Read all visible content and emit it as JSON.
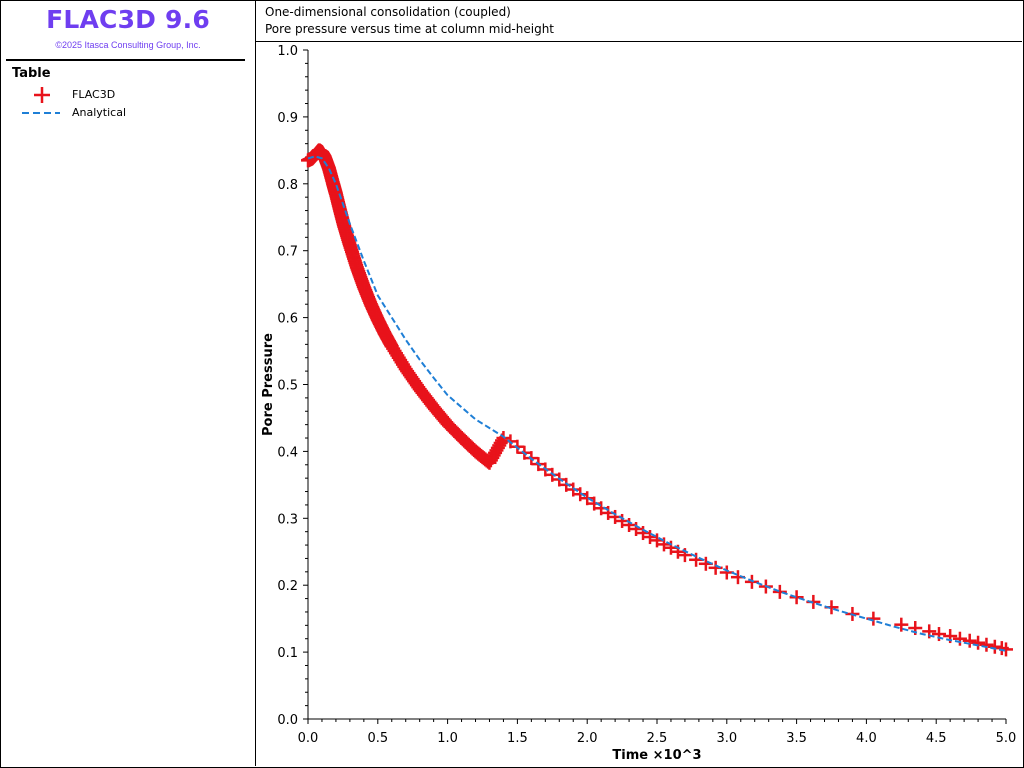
{
  "app": {
    "title": "FLAC3D 9.6",
    "copyright": "©2025 Itasca Consulting Group, Inc."
  },
  "legend": {
    "title": "Table",
    "items": [
      {
        "label": "FLAC3D",
        "marker": "cross-icon",
        "color": "#e8131b"
      },
      {
        "label": "Analytical",
        "marker": "dashed-line-icon",
        "color": "#1f7fd6"
      }
    ]
  },
  "header": {
    "line1": "One-dimensional consolidation (coupled)",
    "line2": "Pore pressure versus time at column mid-height"
  },
  "colors": {
    "flac3d": "#e8131b",
    "analytical": "#1f7fd6",
    "brand": "#6f3ef0"
  },
  "chart_data": {
    "type": "scatter",
    "title": "",
    "xlabel": "Time ×10^3",
    "ylabel": "Pore Pressure",
    "xlim": [
      0.0,
      5.0
    ],
    "ylim": [
      0.0,
      1.0
    ],
    "xticks": [
      "0.0",
      "0.5",
      "1.0",
      "1.5",
      "2.0",
      "2.5",
      "3.0",
      "3.5",
      "4.0",
      "4.5",
      "5.0"
    ],
    "yticks": [
      "0.0",
      "0.1",
      "0.2",
      "0.3",
      "0.4",
      "0.5",
      "0.6",
      "0.7",
      "0.8",
      "0.9",
      "1.0"
    ],
    "grid": false,
    "series": [
      {
        "name": "FLAC3D",
        "style": "markers",
        "x": [
          0.0,
          0.03,
          0.06,
          0.08,
          0.1,
          0.12,
          0.15,
          0.18,
          0.2,
          0.23,
          0.26,
          0.3,
          0.35,
          0.4,
          0.45,
          0.5,
          0.55,
          0.6,
          0.7,
          0.8,
          0.9,
          1.0,
          1.1,
          1.2,
          1.3,
          1.4,
          1.45,
          1.5,
          1.55,
          1.6,
          1.65,
          1.7,
          1.75,
          1.8,
          1.85,
          1.9,
          1.95,
          2.0,
          2.05,
          2.1,
          2.15,
          2.2,
          2.25,
          2.3,
          2.35,
          2.4,
          2.45,
          2.5,
          2.55,
          2.6,
          2.65,
          2.7,
          2.78,
          2.85,
          2.92,
          3.0,
          3.08,
          3.18,
          3.28,
          3.38,
          3.5,
          3.62,
          3.75,
          3.9,
          4.05,
          4.25,
          4.35,
          4.45,
          4.52,
          4.6,
          4.67,
          4.74,
          4.8,
          4.86,
          4.92,
          4.97,
          5.0
        ],
        "y": [
          0.835,
          0.838,
          0.845,
          0.85,
          0.847,
          0.84,
          0.823,
          0.8,
          0.785,
          0.76,
          0.736,
          0.708,
          0.675,
          0.646,
          0.62,
          0.597,
          0.576,
          0.557,
          0.523,
          0.493,
          0.466,
          0.441,
          0.42,
          0.4,
          0.383,
          0.42,
          0.415,
          0.407,
          0.398,
          0.39,
          0.381,
          0.373,
          0.365,
          0.358,
          0.35,
          0.343,
          0.336,
          0.33,
          0.322,
          0.315,
          0.308,
          0.302,
          0.296,
          0.29,
          0.284,
          0.278,
          0.272,
          0.267,
          0.261,
          0.256,
          0.25,
          0.245,
          0.238,
          0.232,
          0.226,
          0.219,
          0.212,
          0.205,
          0.198,
          0.19,
          0.182,
          0.175,
          0.167,
          0.157,
          0.15,
          0.141,
          0.136,
          0.131,
          0.127,
          0.124,
          0.12,
          0.117,
          0.114,
          0.111,
          0.108,
          0.106,
          0.104
        ]
      },
      {
        "name": "Analytical",
        "style": "dashed-line",
        "x": [
          0.0,
          0.05,
          0.1,
          0.15,
          0.2,
          0.25,
          0.3,
          0.4,
          0.5,
          0.6,
          0.7,
          0.8,
          0.9,
          1.0,
          1.2,
          1.4,
          1.6,
          1.8,
          2.0,
          2.2,
          2.4,
          2.6,
          2.8,
          3.0,
          3.2,
          3.4,
          3.6,
          3.8,
          4.0,
          4.2,
          4.4,
          4.6,
          4.8,
          5.0
        ],
        "y": [
          0.838,
          0.841,
          0.838,
          0.823,
          0.8,
          0.77,
          0.74,
          0.685,
          0.633,
          0.6,
          0.567,
          0.537,
          0.51,
          0.484,
          0.448,
          0.422,
          0.389,
          0.359,
          0.331,
          0.306,
          0.283,
          0.261,
          0.241,
          0.222,
          0.205,
          0.189,
          0.175,
          0.162,
          0.15,
          0.138,
          0.127,
          0.118,
          0.11,
          0.102
        ]
      }
    ]
  }
}
